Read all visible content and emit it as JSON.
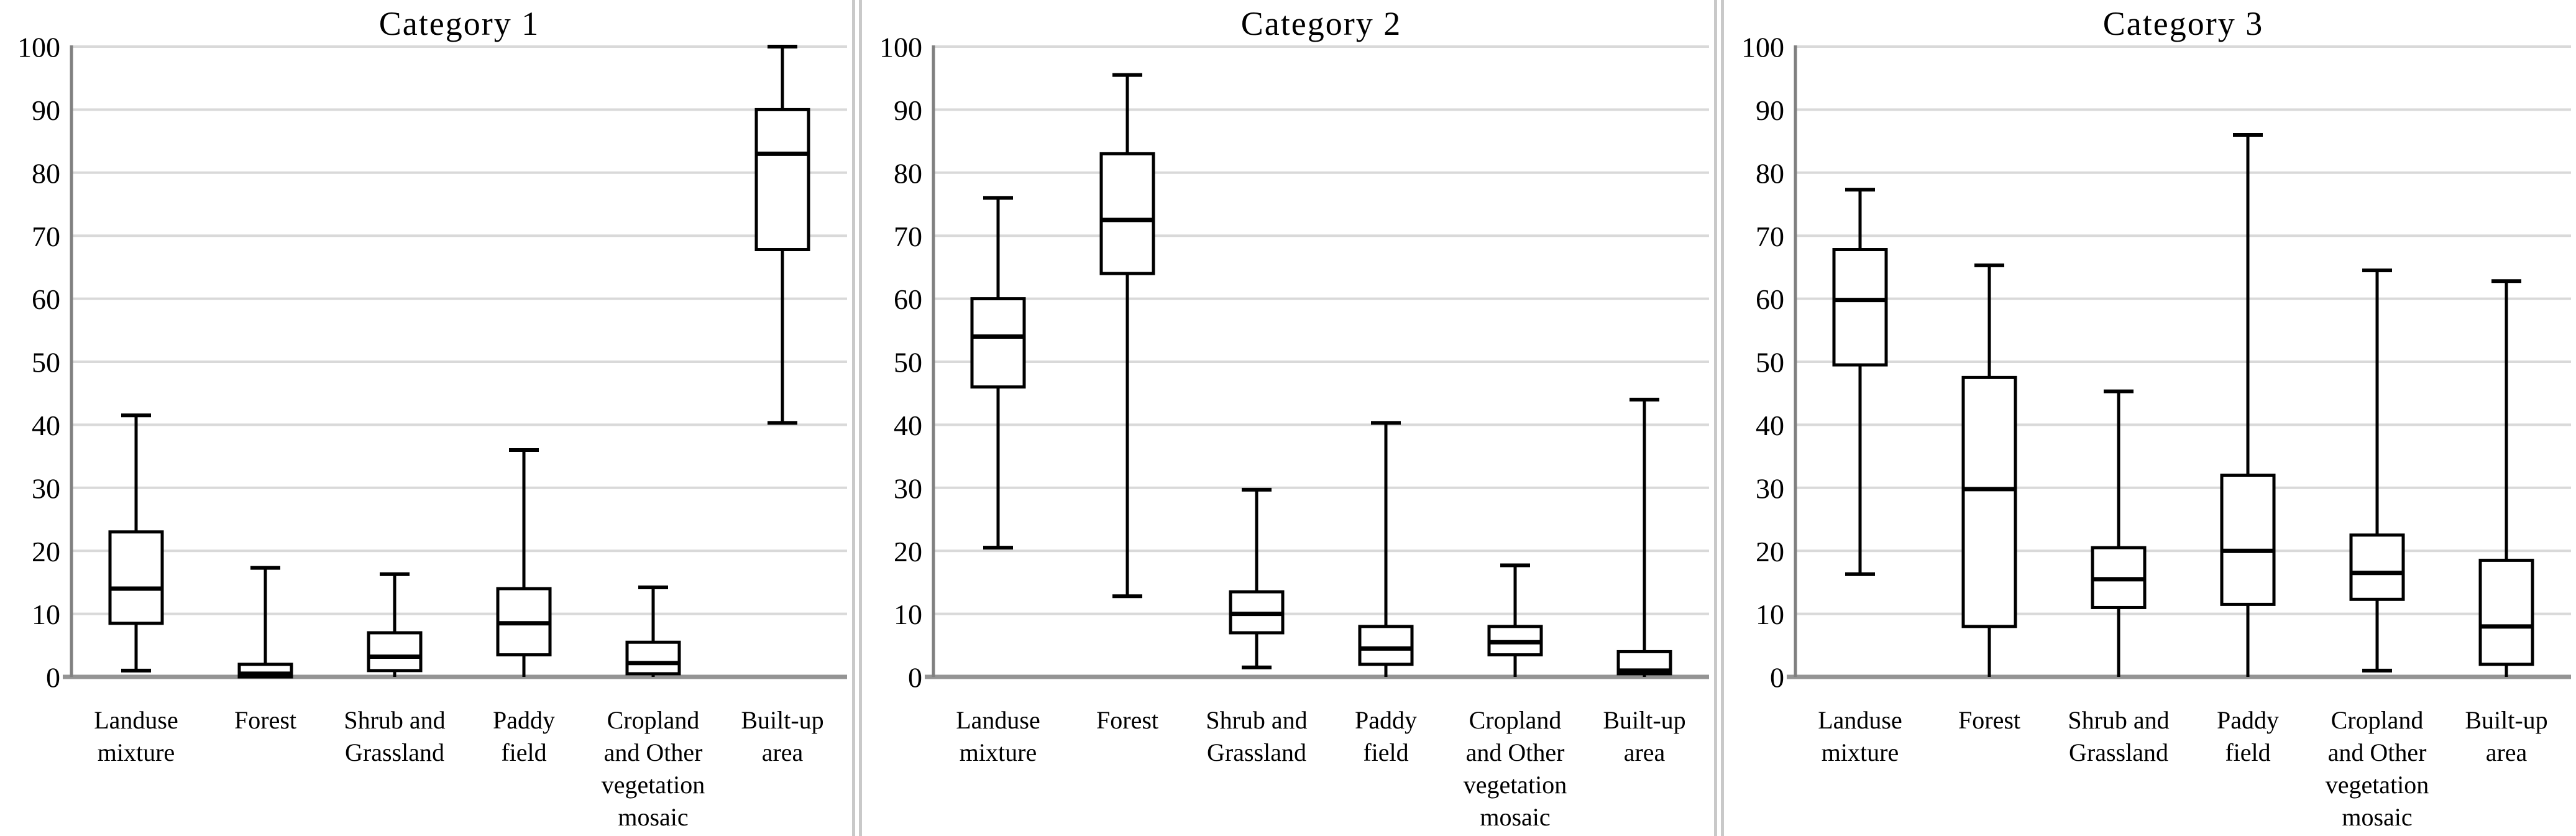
{
  "figure": {
    "kind": "boxplot-triptych",
    "background": "#ffffff"
  },
  "colors": {
    "gridline": "#d9d9d9",
    "baseline_axis": "#949494",
    "y_axis_line": "#808080",
    "box_stroke": "#000000",
    "box_fill": "#ffffff",
    "divider": "#c9c9c9",
    "text": "#000000"
  },
  "axis": {
    "ymin": 0,
    "ymax": 100,
    "step": 10,
    "tick_labels": [
      "100",
      "90",
      "80",
      "70",
      "60",
      "50",
      "40",
      "30",
      "20",
      "10",
      "0"
    ],
    "grid": true
  },
  "x_label_lines": [
    [
      "Landuse",
      "mixture"
    ],
    [
      "Forest"
    ],
    [
      "Shrub and",
      "Grassland"
    ],
    [
      "Paddy",
      "field"
    ],
    [
      "Cropland",
      "and Other",
      "vegetation",
      "mosaic"
    ],
    [
      "Built-up",
      "area"
    ]
  ],
  "chart_data": [
    {
      "type": "box",
      "title": "Category 1",
      "categories": [
        "Landuse mixture",
        "Forest",
        "Shrub and Grassland",
        "Paddy field",
        "Cropland and Other vegetation mosaic",
        "Built-up area"
      ],
      "ylim": [
        0,
        100
      ],
      "boxes": [
        {
          "category": "Landuse mixture",
          "min": 1,
          "q1": 8.5,
          "median": 14,
          "q3": 23,
          "max": 41.5
        },
        {
          "category": "Forest",
          "min": 0,
          "q1": 0,
          "median": 0.5,
          "q3": 2,
          "max": 17.3
        },
        {
          "category": "Shrub and Grassland",
          "min": 0,
          "q1": 1,
          "median": 3.2,
          "q3": 7,
          "max": 16.3
        },
        {
          "category": "Paddy field",
          "min": 0,
          "q1": 3.5,
          "median": 8.5,
          "q3": 14,
          "max": 36
        },
        {
          "category": "Cropland and Other vegetation mosaic",
          "min": 0,
          "q1": 0.5,
          "median": 2.2,
          "q3": 5.5,
          "max": 14.2
        },
        {
          "category": "Built-up area",
          "min": 40.3,
          "q1": 67.8,
          "median": 83,
          "q3": 90,
          "max": 100
        }
      ]
    },
    {
      "type": "box",
      "title": "Category 2",
      "categories": [
        "Landuse mixture",
        "Forest",
        "Shrub and Grassland",
        "Paddy field",
        "Cropland and Other vegetation mosaic",
        "Built-up area"
      ],
      "ylim": [
        0,
        100
      ],
      "boxes": [
        {
          "category": "Landuse mixture",
          "min": 20.5,
          "q1": 46,
          "median": 54,
          "q3": 60,
          "max": 76
        },
        {
          "category": "Forest",
          "min": 12.8,
          "q1": 64,
          "median": 72.5,
          "q3": 83,
          "max": 95.5
        },
        {
          "category": "Shrub and Grassland",
          "min": 1.5,
          "q1": 7,
          "median": 10,
          "q3": 13.5,
          "max": 29.7
        },
        {
          "category": "Paddy field",
          "min": 0,
          "q1": 2,
          "median": 4.5,
          "q3": 8,
          "max": 40.3
        },
        {
          "category": "Cropland and Other vegetation mosaic",
          "min": 0,
          "q1": 3.5,
          "median": 5.5,
          "q3": 8,
          "max": 17.7
        },
        {
          "category": "Built-up area",
          "min": 0,
          "q1": 0.5,
          "median": 1,
          "q3": 4,
          "max": 44
        }
      ]
    },
    {
      "type": "box",
      "title": "Category 3",
      "categories": [
        "Landuse mixture",
        "Forest",
        "Shrub and Grassland",
        "Paddy field",
        "Cropland and Other vegetation mosaic",
        "Built-up area"
      ],
      "ylim": [
        0,
        100
      ],
      "boxes": [
        {
          "category": "Landuse mixture",
          "min": 16.3,
          "q1": 49.5,
          "median": 59.8,
          "q3": 67.8,
          "max": 77.3
        },
        {
          "category": "Forest",
          "min": 0,
          "q1": 8,
          "median": 29.8,
          "q3": 47.5,
          "max": 65.3
        },
        {
          "category": "Shrub and Grassland",
          "min": 0,
          "q1": 11,
          "median": 15.5,
          "q3": 20.5,
          "max": 45.3
        },
        {
          "category": "Paddy field",
          "min": 0,
          "q1": 11.5,
          "median": 20,
          "q3": 32,
          "max": 86
        },
        {
          "category": "Cropland and Other vegetation mosaic",
          "min": 1,
          "q1": 12.3,
          "median": 16.5,
          "q3": 22.5,
          "max": 64.5
        },
        {
          "category": "Built-up area",
          "min": 0,
          "q1": 2,
          "median": 8,
          "q3": 18.5,
          "max": 62.8
        }
      ]
    }
  ]
}
